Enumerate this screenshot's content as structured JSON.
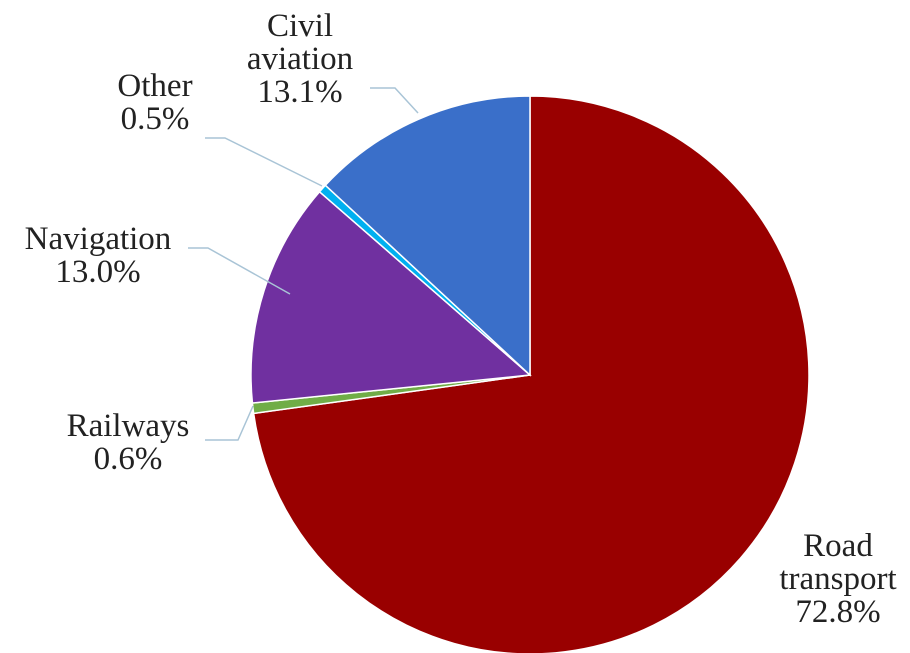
{
  "chart_data": {
    "type": "pie",
    "start_angle_deg": 0,
    "direction": "clockwise",
    "slices": [
      {
        "key": "road",
        "name_lines": [
          "Road",
          "transport"
        ],
        "value": 72.8,
        "value_label": "72.8%",
        "color": "#990000"
      },
      {
        "key": "railways",
        "name_lines": [
          "Railways"
        ],
        "value": 0.6,
        "value_label": "0.6%",
        "color": "#70ad47"
      },
      {
        "key": "navigation",
        "name_lines": [
          "Navigation"
        ],
        "value": 13.0,
        "value_label": "13.0%",
        "color": "#7030a0"
      },
      {
        "key": "other",
        "name_lines": [
          "Other"
        ],
        "value": 0.5,
        "value_label": "0.5%",
        "color": "#00b0f0"
      },
      {
        "key": "civil",
        "name_lines": [
          "Civil",
          "aviation"
        ],
        "value": 13.1,
        "value_label": "13.1%",
        "color": "#3a6fc9"
      }
    ]
  }
}
